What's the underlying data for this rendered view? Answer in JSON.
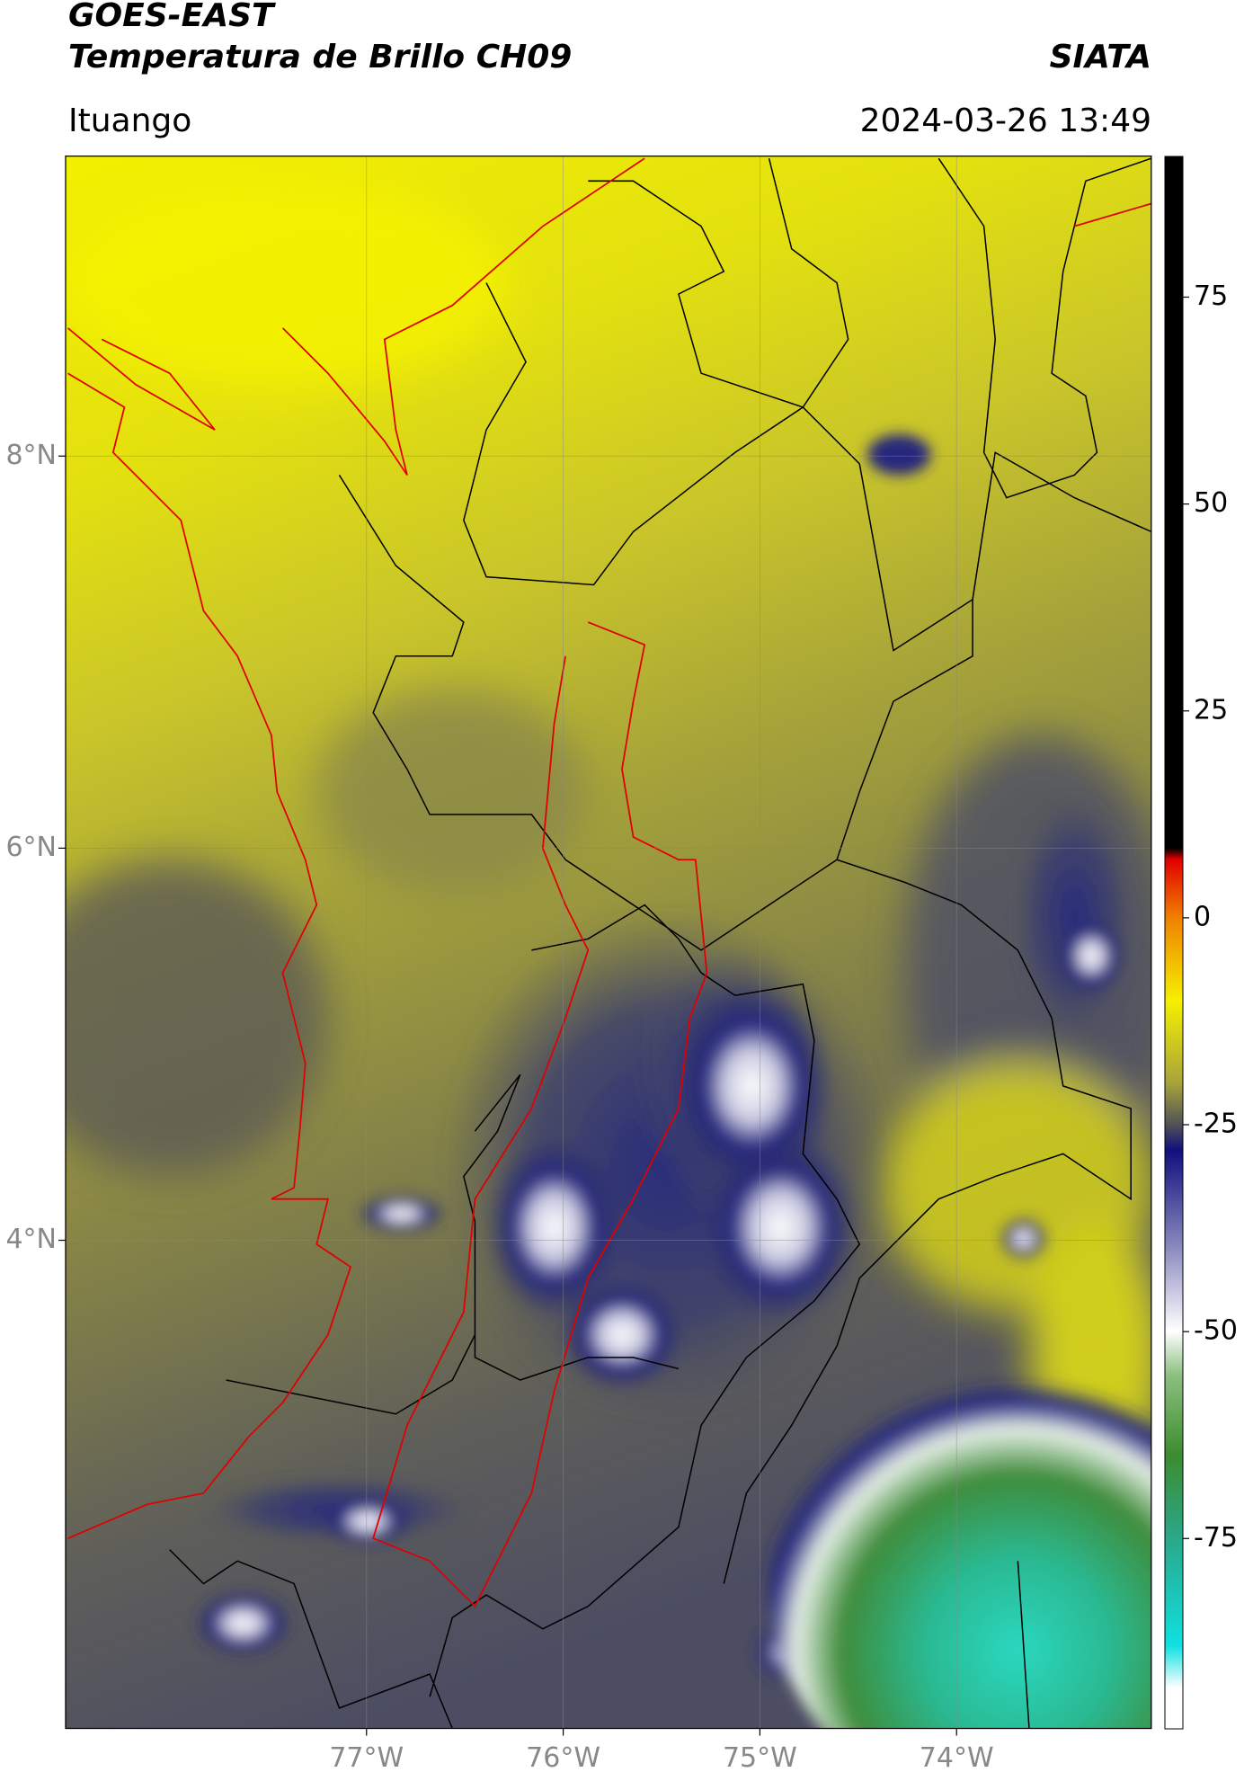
{
  "header": {
    "title_line1": "GOES-EAST",
    "title_line2": "Temperatura de Brillo CH09",
    "org": "SIATA",
    "location": "Ituango",
    "datetime": "2024-03-26 13:49"
  },
  "map": {
    "latlim": [
      1.51,
      9.53
    ],
    "lonlim": [
      -78.53,
      -73.01
    ],
    "lat_ticks": [
      {
        "value": 8,
        "label": "8°N"
      },
      {
        "value": 6,
        "label": "6°N"
      },
      {
        "value": 4,
        "label": "4°N"
      }
    ],
    "lon_ticks": [
      {
        "value": -77,
        "label": "77°W"
      },
      {
        "value": -76,
        "label": "76°W"
      },
      {
        "value": -75,
        "label": "75°W"
      },
      {
        "value": -74,
        "label": "74°W"
      }
    ]
  },
  "colorbar": {
    "lim": [
      -98,
      92
    ],
    "ticks": [
      75,
      50,
      25,
      0,
      -25,
      -50,
      -75
    ]
  }
}
